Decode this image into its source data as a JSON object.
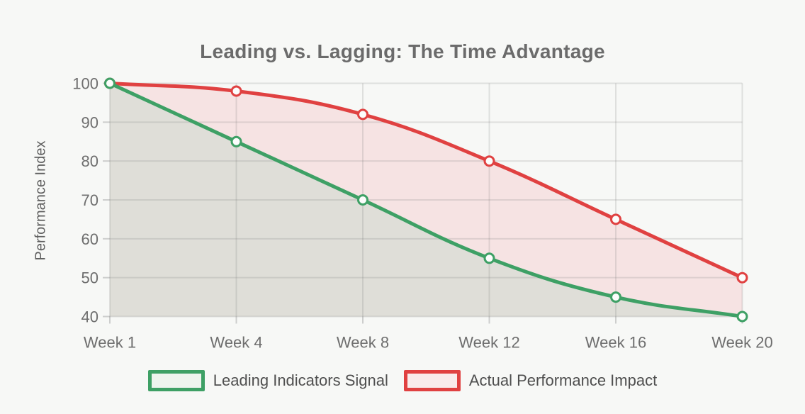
{
  "chart_data": {
    "type": "line",
    "title": "Leading vs. Lagging: The Time Advantage",
    "ylabel": "Performance Index",
    "xlabel": "",
    "categories": [
      "Week 1",
      "Week 4",
      "Week 8",
      "Week 12",
      "Week 16",
      "Week 20"
    ],
    "series": [
      {
        "name": "Leading Indicators Signal",
        "values": [
          100,
          85,
          70,
          55,
          45,
          40
        ],
        "line_color": "#3ea065",
        "area_color": "#dfded8",
        "legend_fill": "#eef4ee"
      },
      {
        "name": "Actual Performance Impact",
        "values": [
          100,
          98,
          92,
          80,
          65,
          50
        ],
        "line_color": "#e04141",
        "area_color": "#f6e3e3",
        "legend_fill": "#f9ebeb"
      }
    ],
    "ylim": [
      40,
      100
    ],
    "yticks": [
      40,
      50,
      60,
      70,
      80,
      90,
      100
    ],
    "grid": true,
    "legend_position": "bottom",
    "curve": "smooth",
    "point_style": "hollow-circle"
  },
  "colors": {
    "background": "#f7f8f6",
    "gridline": "#6e6e6e",
    "axis_text": "#6e6e6e",
    "title_text": "#6b6b6b",
    "legend_text": "#4f4f4f",
    "point_fill": "#fcfdfc"
  }
}
